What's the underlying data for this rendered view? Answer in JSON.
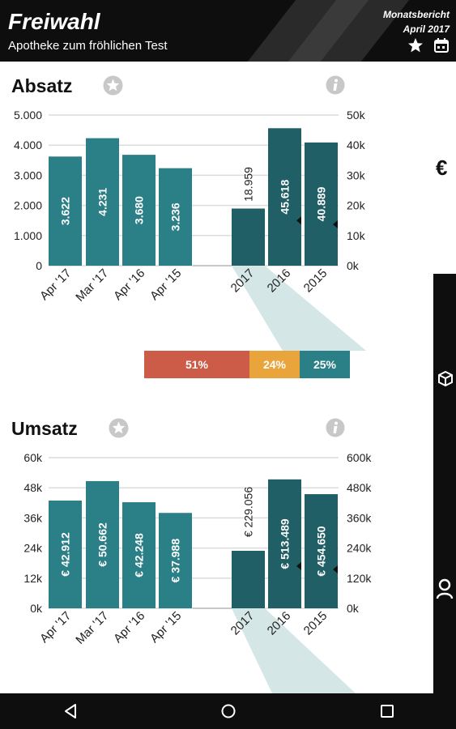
{
  "header": {
    "title": "Freiwahl",
    "subtitle": "Apotheke zum fröhlichen Test",
    "report_title": "Monatsbericht",
    "report_date": "April 2017",
    "icons": [
      "star-icon",
      "calendar-icon"
    ]
  },
  "side": {
    "currency_symbol": "€",
    "icons": [
      "cube-icon",
      "person-icon"
    ]
  },
  "sections": [
    {
      "title": "Absatz",
      "icons": [
        "star-icon",
        "info-icon"
      ],
      "split_values": [
        "51%",
        "24%",
        "25%"
      ],
      "colors": {
        "bar": "#2b7f87",
        "bar_dark": "#215f66",
        "split": [
          "#cc5b48",
          "#e9a53c",
          "#2b7f87"
        ]
      }
    },
    {
      "title": "Umsatz",
      "icons": [
        "star-icon",
        "info-icon"
      ]
    }
  ],
  "chart_data": [
    {
      "type": "bar",
      "title": "Absatz",
      "left": {
        "categories": [
          "Apr '17",
          "Mar '17",
          "Apr '16",
          "Apr '15"
        ],
        "values": [
          3622,
          4231,
          3680,
          3236
        ],
        "labels": [
          "3.622",
          "4.231",
          "3.680",
          "3.236"
        ],
        "ylim": [
          0,
          5000
        ],
        "ticks": [
          "0",
          "1.000",
          "2.000",
          "3.000",
          "4.000",
          "5.000"
        ]
      },
      "right": {
        "categories": [
          "2017",
          "2016",
          "2015"
        ],
        "values": [
          18959,
          45618,
          40889
        ],
        "labels": [
          "18.959",
          "45.618",
          "40.889"
        ],
        "ylim": [
          0,
          50000
        ],
        "ticks": [
          "0k",
          "10k",
          "20k",
          "30k",
          "40k",
          "50k"
        ],
        "marker_values": [
          null,
          15000,
          13700
        ]
      },
      "grid": true
    },
    {
      "type": "bar",
      "title": "Umsatz",
      "left": {
        "categories": [
          "Apr '17",
          "Mar '17",
          "Apr '16",
          "Apr '15"
        ],
        "values": [
          42912,
          50662,
          42248,
          37988
        ],
        "labels": [
          "€ 42.912",
          "€ 50.662",
          "€ 42.248",
          "€ 37.988"
        ],
        "ylim": [
          0,
          60000
        ],
        "ticks": [
          "0k",
          "12k",
          "24k",
          "36k",
          "48k",
          "60k"
        ]
      },
      "right": {
        "categories": [
          "2017",
          "2016",
          "2015"
        ],
        "values": [
          229056,
          513489,
          454650
        ],
        "labels": [
          "€ 229.056",
          "€ 513.489",
          "€ 454.650"
        ],
        "ylim": [
          0,
          600000
        ],
        "ticks": [
          "0k",
          "120k",
          "240k",
          "360k",
          "480k",
          "600k"
        ],
        "marker_values": [
          null,
          168000,
          155000
        ]
      },
      "grid": true
    }
  ]
}
